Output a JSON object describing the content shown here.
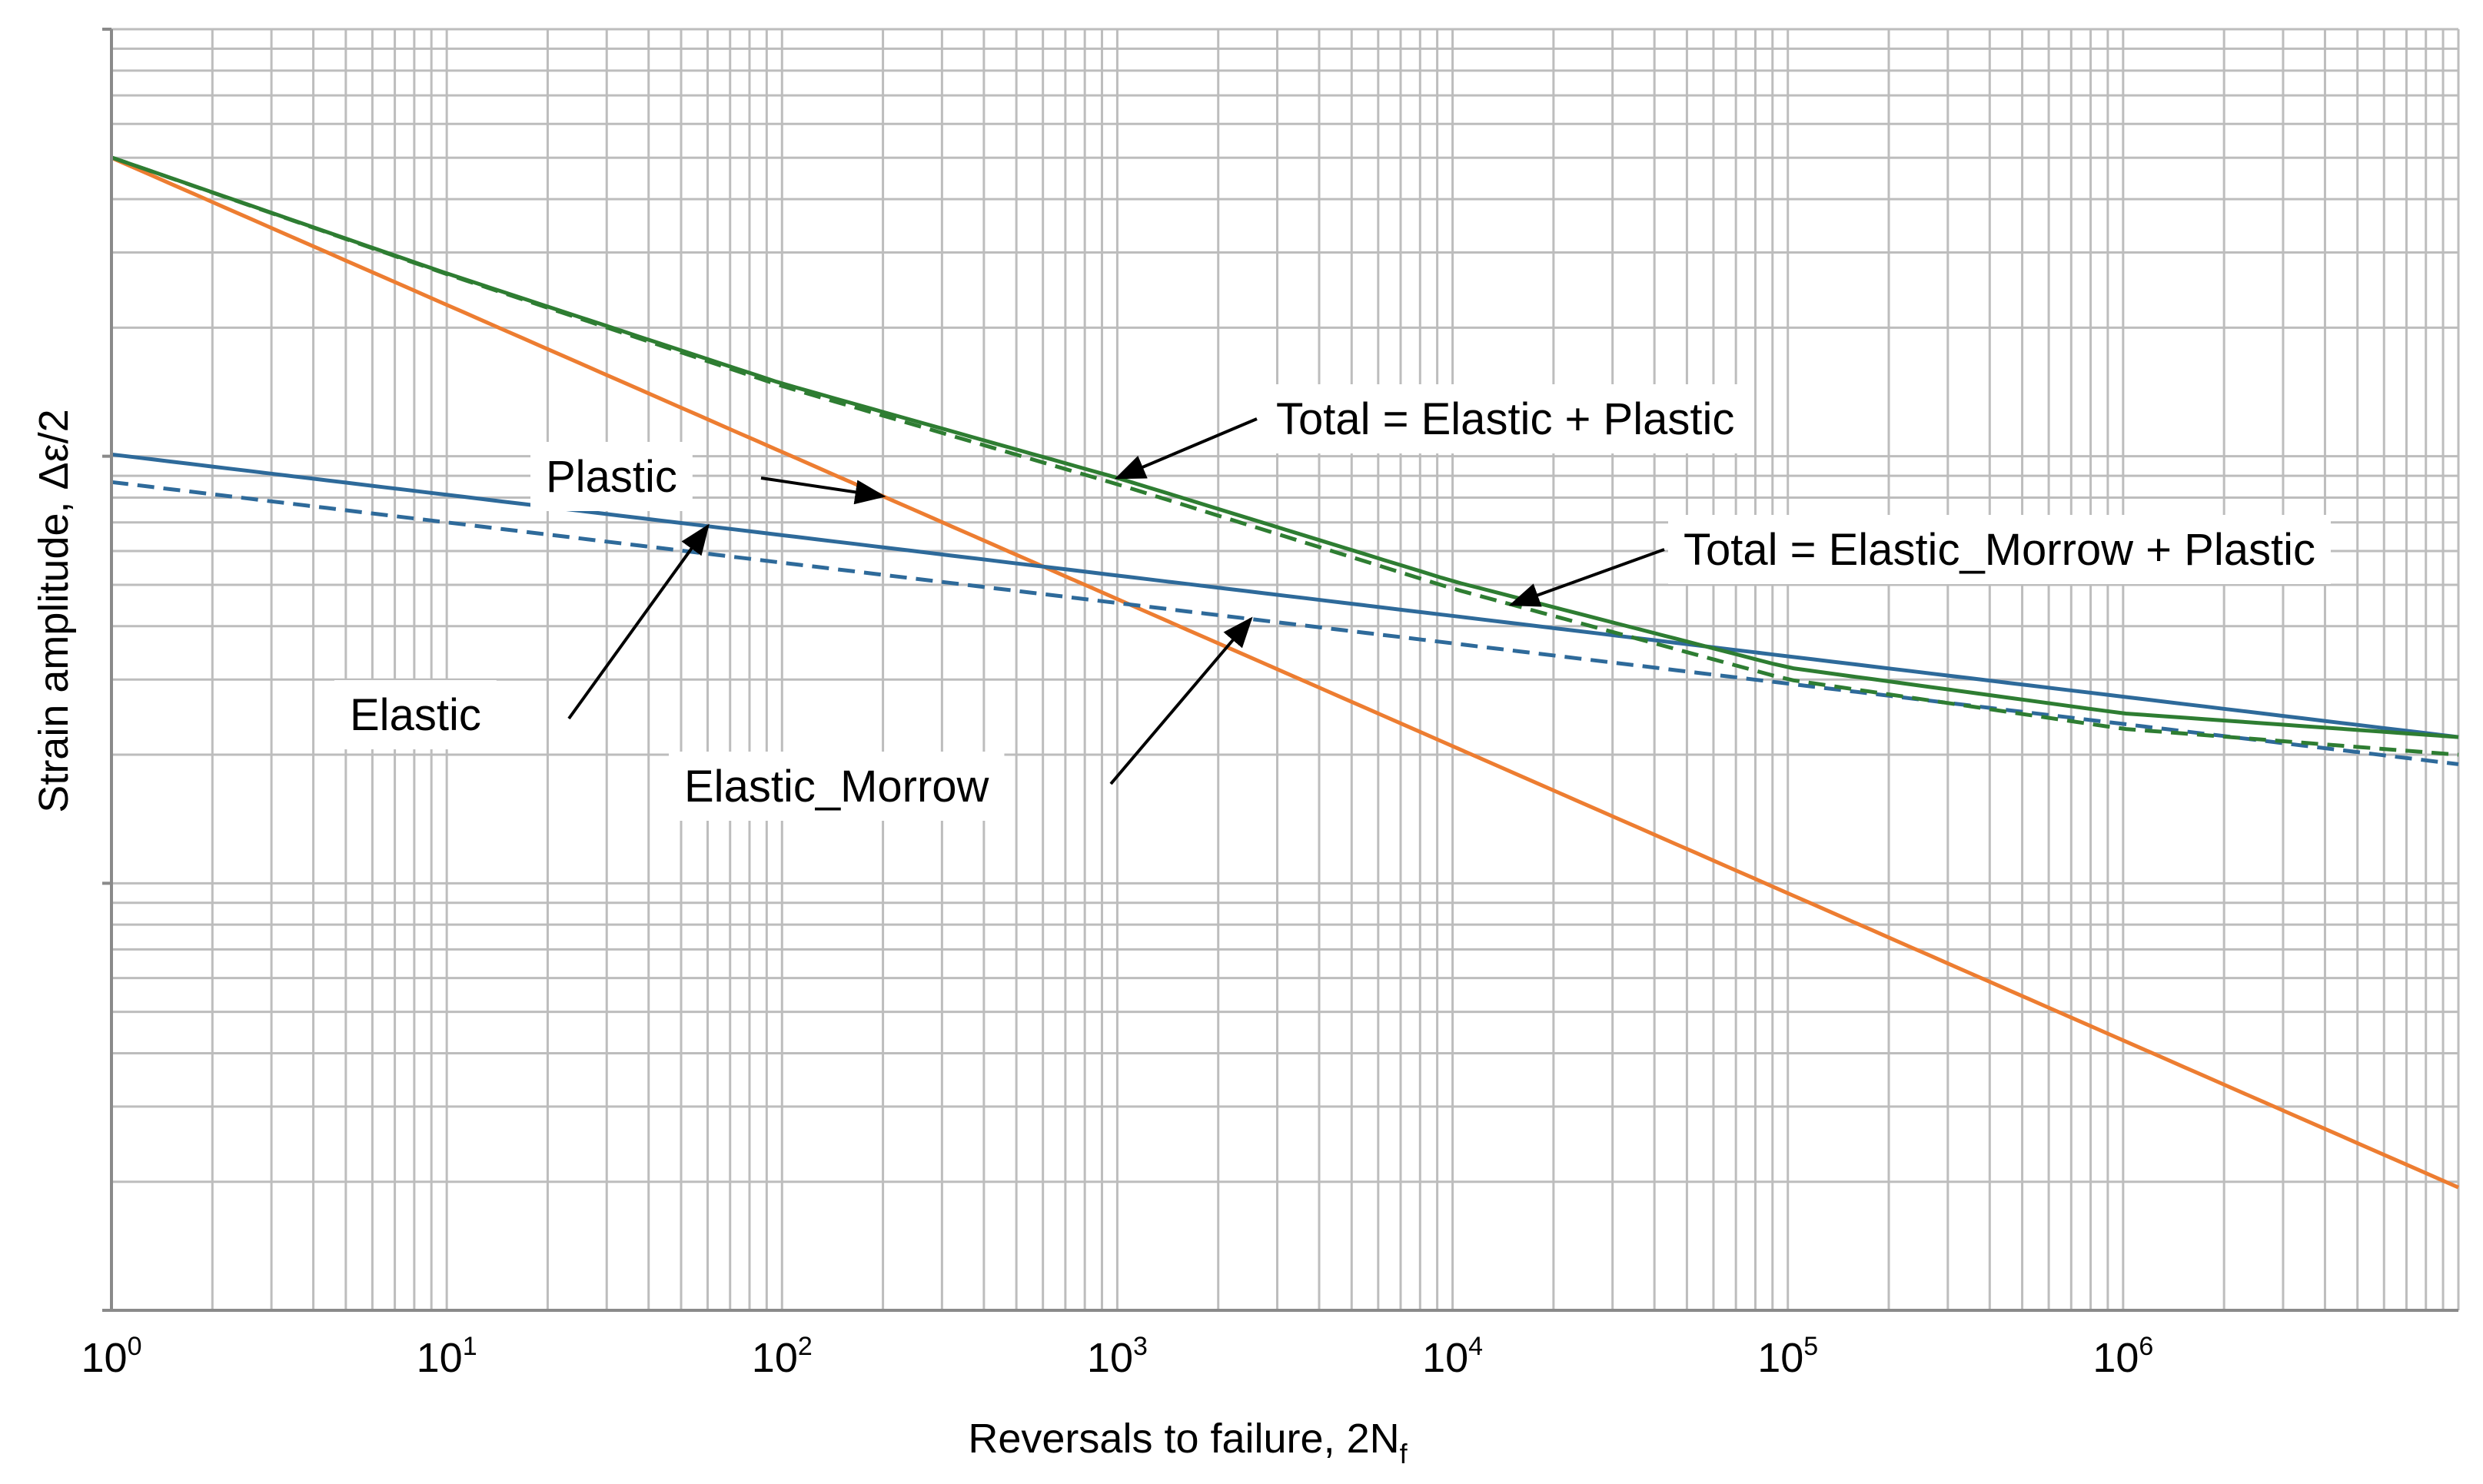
{
  "chart_data": {
    "type": "line",
    "xlabel": "Reversals to failure, 2N",
    "xlabel_sub": "f",
    "ylabel": "Strain amplitude, Δε/2",
    "xscale": "log",
    "yscale": "log",
    "xlim": [
      1,
      10000000
    ],
    "ylim": [
      0.0001,
      0.1
    ],
    "x_ticks": [
      {
        "base": "10",
        "exp": "0"
      },
      {
        "base": "10",
        "exp": "1"
      },
      {
        "base": "10",
        "exp": "2"
      },
      {
        "base": "10",
        "exp": "3"
      },
      {
        "base": "10",
        "exp": "4"
      },
      {
        "base": "10",
        "exp": "5"
      },
      {
        "base": "10",
        "exp": "6"
      }
    ],
    "y_tick_labels": "none",
    "grid": true,
    "legend": "none",
    "series": [
      {
        "name": "Plastic",
        "color": "#ed7d31",
        "style": "solid",
        "x": [
          1,
          10000000
        ],
        "y": [
          0.05,
          0.000194
        ]
      },
      {
        "name": "Elastic",
        "color": "#2e6a9a",
        "style": "solid",
        "x": [
          1,
          10000000
        ],
        "y": [
          0.0101,
          0.0022
        ]
      },
      {
        "name": "Elastic_Morrow",
        "color": "#2e6a9a",
        "style": "dashed",
        "x": [
          1,
          10000000
        ],
        "y": [
          0.0087,
          0.0019
        ]
      },
      {
        "name": "Total = Elastic + Plastic",
        "color": "#2e7d32",
        "style": "solid",
        "x": [
          1,
          10,
          100,
          1000,
          10000,
          100000,
          1000000,
          10000000
        ],
        "y": [
          0.0501,
          0.0268,
          0.0148,
          0.0089,
          0.0051,
          0.0032,
          0.0025,
          0.0022
        ]
      },
      {
        "name": "Total = Elastic_Morrow + Plastic",
        "color": "#2e7d32",
        "style": "dashed",
        "x": [
          1,
          10,
          100,
          1000,
          10000,
          100000,
          1000000,
          10000000
        ],
        "y": [
          0.0501,
          0.0267,
          0.0146,
          0.0086,
          0.0049,
          0.003,
          0.0023,
          0.002
        ]
      }
    ],
    "annotations": [
      {
        "text": "Plastic",
        "target_series": "Plastic",
        "target_x": 200
      },
      {
        "text": "Total = Elastic + Plastic",
        "target_series": "Total = Elastic + Plastic",
        "target_x": 1000
      },
      {
        "text": "Total = Elastic_Morrow + Plastic",
        "target_series": "Total = Elastic_Morrow + Plastic",
        "target_x": 15000
      },
      {
        "text": "Elastic",
        "target_series": "Elastic",
        "target_x": 60
      },
      {
        "text": "Elastic_Morrow",
        "target_series": "Elastic_Morrow",
        "target_x": 2500
      }
    ]
  }
}
